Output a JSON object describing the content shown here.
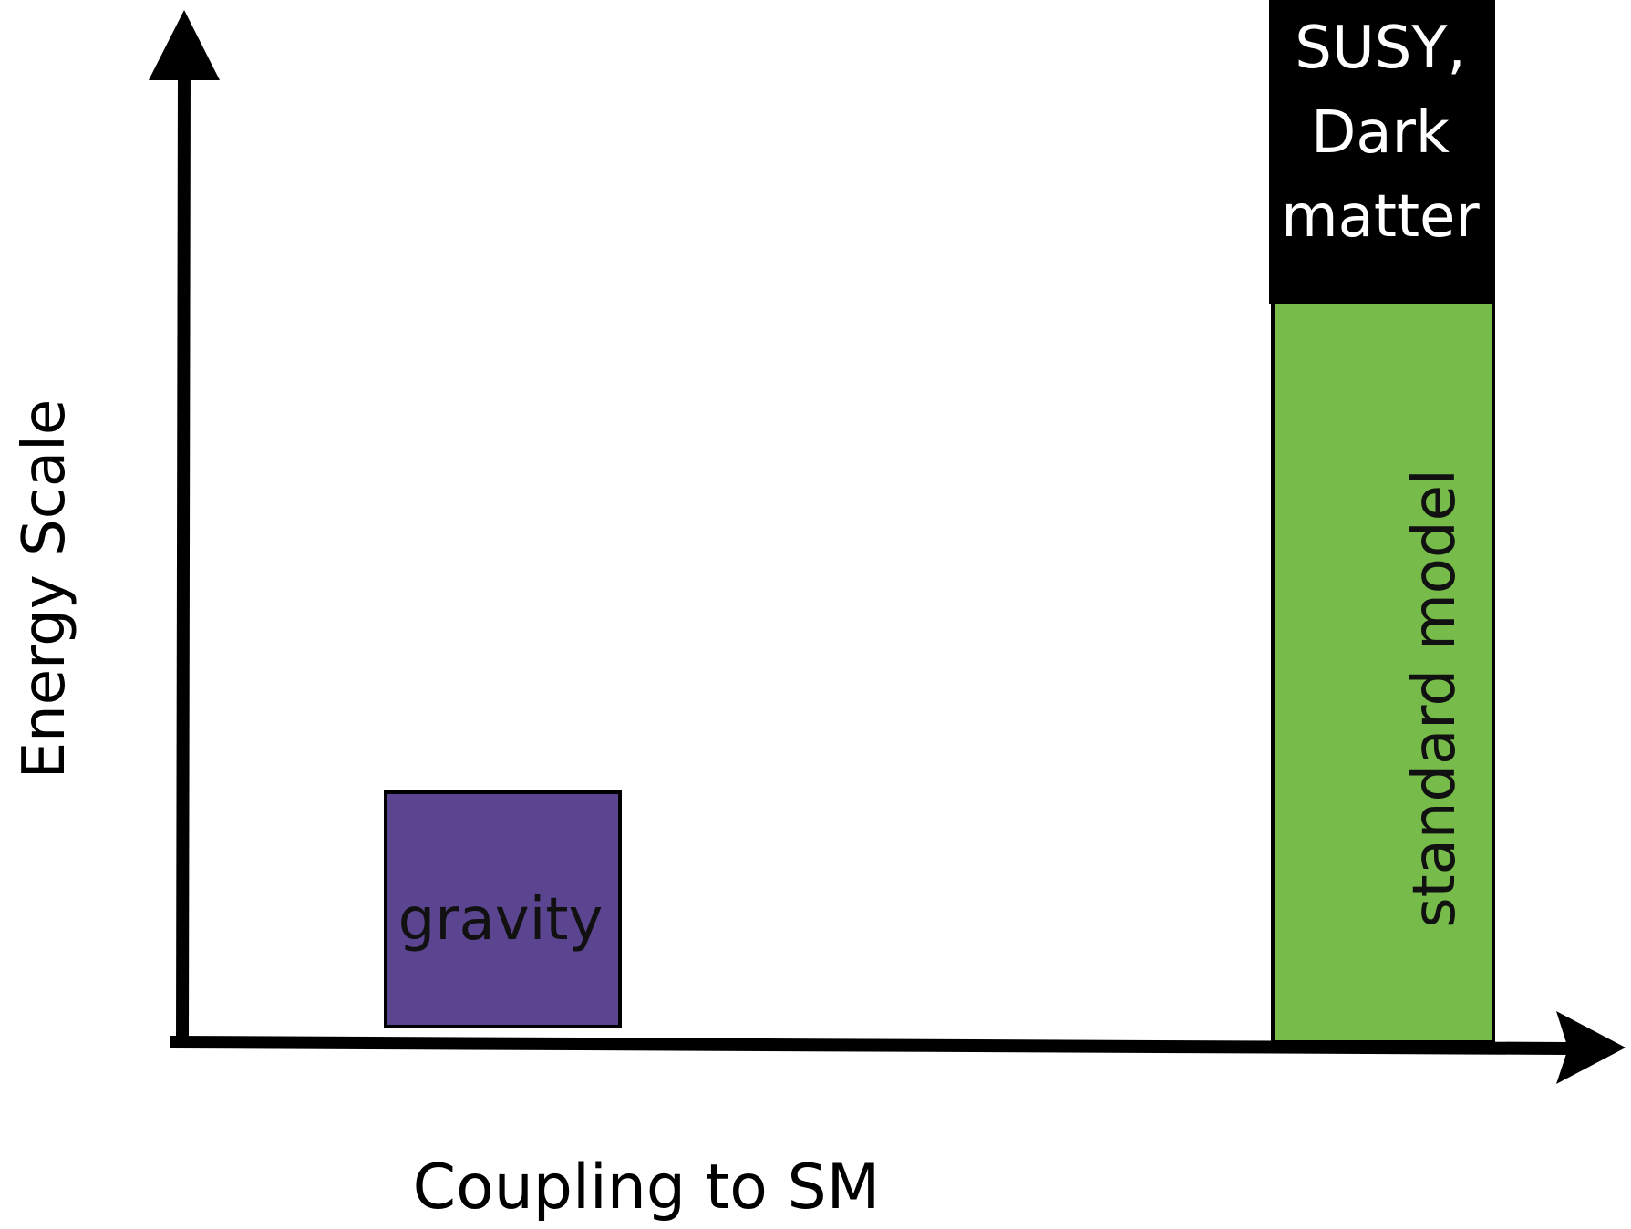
{
  "axes": {
    "y_label": "Energy Scale",
    "x_label": "Coupling to SM"
  },
  "boxes": {
    "gravity": "gravity",
    "standard_model": "standard model",
    "beyond": [
      "SUSY,",
      "Dark",
      "matter"
    ]
  }
}
